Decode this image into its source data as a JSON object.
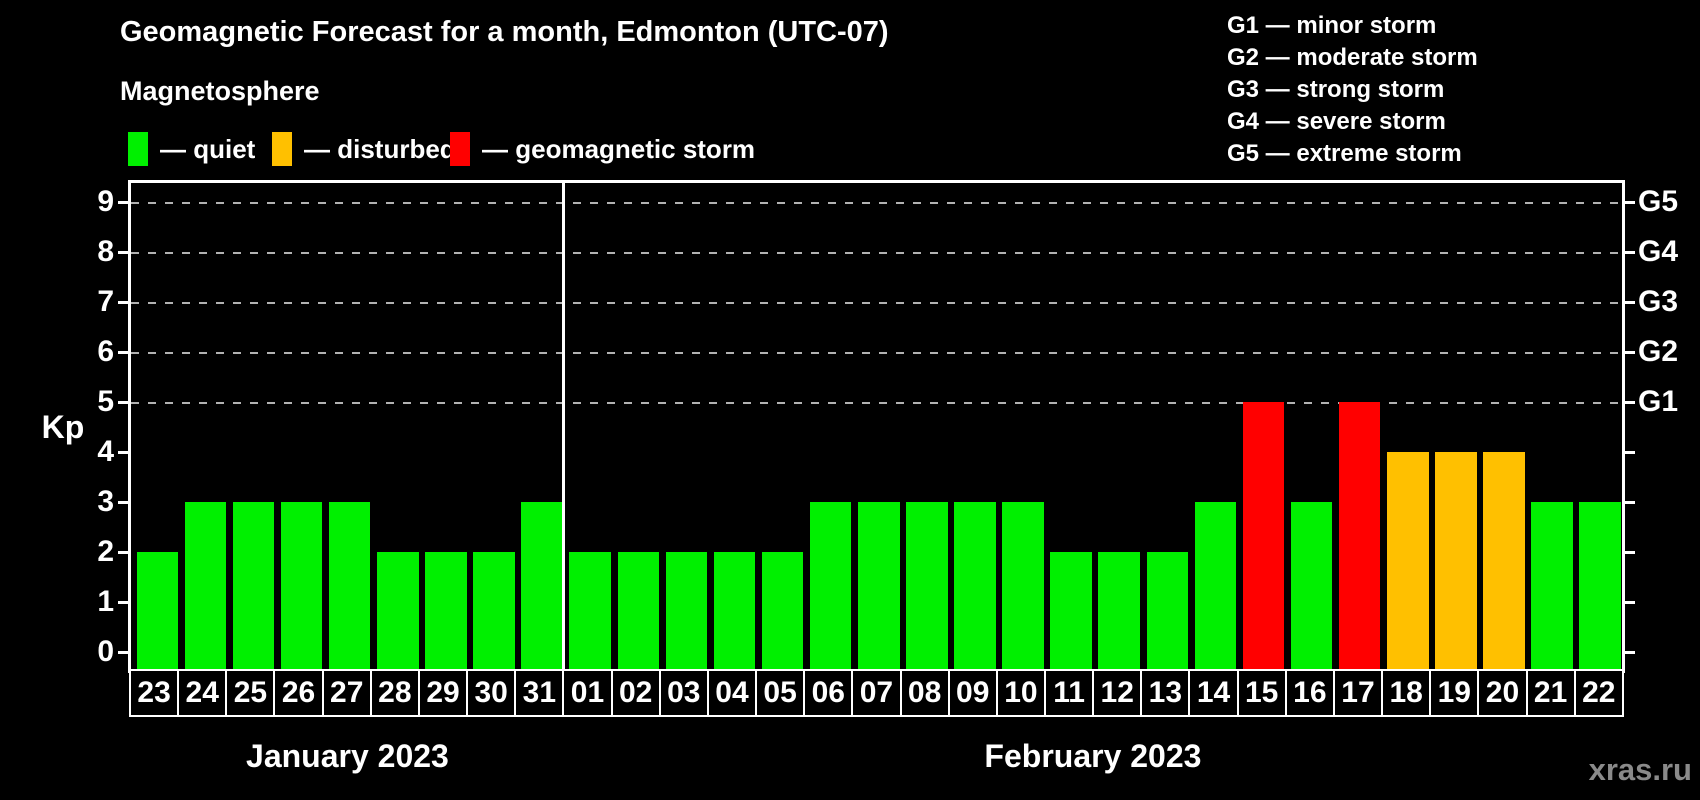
{
  "title": "Geomagnetic Forecast for a month, Edmonton (UTC-07)",
  "watermark": "xras.ru",
  "legend": {
    "heading": "Magnetosphere",
    "items": [
      {
        "name": "quiet",
        "label": "— quiet",
        "color": "#00f000",
        "x": 128
      },
      {
        "name": "disturbed",
        "label": "— disturbed",
        "color": "#ffc000",
        "x": 272
      },
      {
        "name": "storm",
        "label": "— geomagnetic storm",
        "color": "#ff0000",
        "x": 450
      }
    ]
  },
  "g_legend": [
    {
      "code": "G1",
      "label": "minor storm"
    },
    {
      "code": "G2",
      "label": "moderate storm"
    },
    {
      "code": "G3",
      "label": "strong storm"
    },
    {
      "code": "G4",
      "label": "severe storm"
    },
    {
      "code": "G5",
      "label": "extreme storm"
    }
  ],
  "chart_data": {
    "type": "bar",
    "title": "Geomagnetic Forecast for a month, Edmonton (UTC-07)",
    "ylabel": "Kp",
    "ylim": [
      0,
      9.4
    ],
    "y_ticks": [
      0,
      1,
      2,
      3,
      4,
      5,
      6,
      7,
      8,
      9
    ],
    "grid": {
      "style": "dashed-horizontal",
      "at_kp": [
        5,
        6,
        7,
        8,
        9
      ],
      "color": "#b2b2b2"
    },
    "right_axis": [
      {
        "label": "G1",
        "kp": 5
      },
      {
        "label": "G2",
        "kp": 6
      },
      {
        "label": "G3",
        "kp": 7
      },
      {
        "label": "G4",
        "kp": 8
      },
      {
        "label": "G5",
        "kp": 9
      }
    ],
    "status_colors": {
      "quiet": "#00f000",
      "disturbed": "#ffc000",
      "storm": "#ff0000"
    },
    "series": [
      {
        "month": "January 2023",
        "points": [
          {
            "day": "23",
            "kp": 2,
            "status": "quiet"
          },
          {
            "day": "24",
            "kp": 3,
            "status": "quiet"
          },
          {
            "day": "25",
            "kp": 3,
            "status": "quiet"
          },
          {
            "day": "26",
            "kp": 3,
            "status": "quiet"
          },
          {
            "day": "27",
            "kp": 3,
            "status": "quiet"
          },
          {
            "day": "28",
            "kp": 2,
            "status": "quiet"
          },
          {
            "day": "29",
            "kp": 2,
            "status": "quiet"
          },
          {
            "day": "30",
            "kp": 2,
            "status": "quiet"
          },
          {
            "day": "31",
            "kp": 3,
            "status": "quiet"
          }
        ]
      },
      {
        "month": "February 2023",
        "points": [
          {
            "day": "01",
            "kp": 2,
            "status": "quiet"
          },
          {
            "day": "02",
            "kp": 2,
            "status": "quiet"
          },
          {
            "day": "03",
            "kp": 2,
            "status": "quiet"
          },
          {
            "day": "04",
            "kp": 2,
            "status": "quiet"
          },
          {
            "day": "05",
            "kp": 2,
            "status": "quiet"
          },
          {
            "day": "06",
            "kp": 3,
            "status": "quiet"
          },
          {
            "day": "07",
            "kp": 3,
            "status": "quiet"
          },
          {
            "day": "08",
            "kp": 3,
            "status": "quiet"
          },
          {
            "day": "09",
            "kp": 3,
            "status": "quiet"
          },
          {
            "day": "10",
            "kp": 3,
            "status": "quiet"
          },
          {
            "day": "11",
            "kp": 2,
            "status": "quiet"
          },
          {
            "day": "12",
            "kp": 2,
            "status": "quiet"
          },
          {
            "day": "13",
            "kp": 2,
            "status": "quiet"
          },
          {
            "day": "14",
            "kp": 3,
            "status": "quiet"
          },
          {
            "day": "15",
            "kp": 5,
            "status": "storm"
          },
          {
            "day": "16",
            "kp": 3,
            "status": "quiet"
          },
          {
            "day": "17",
            "kp": 5,
            "status": "storm"
          },
          {
            "day": "18",
            "kp": 4,
            "status": "disturbed"
          },
          {
            "day": "19",
            "kp": 4,
            "status": "disturbed"
          },
          {
            "day": "20",
            "kp": 4,
            "status": "disturbed"
          },
          {
            "day": "21",
            "kp": 3,
            "status": "quiet"
          },
          {
            "day": "22",
            "kp": 3,
            "status": "quiet"
          }
        ]
      }
    ]
  }
}
